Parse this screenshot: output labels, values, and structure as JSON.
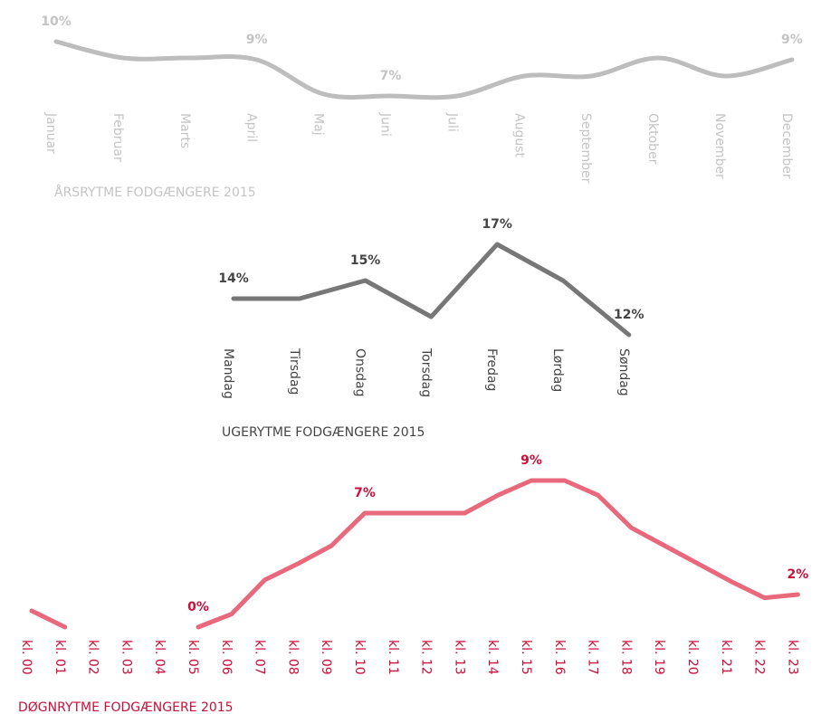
{
  "chart_data": [
    {
      "type": "line",
      "title": "ÅRSRYTME FODGÆNGERE 2015",
      "color": "#bdbdbd",
      "label_color": "#c4c4c4",
      "categories": [
        "Januar",
        "Februar",
        "Marts",
        "April",
        "Maj",
        "Juni",
        "Juli",
        "August",
        "September",
        "Oktober",
        "November",
        "December"
      ],
      "values": [
        10,
        9.1,
        9.1,
        9,
        7.1,
        7,
        7,
        8.1,
        8.1,
        9.1,
        8.1,
        9
      ],
      "value_labels": [
        "10%",
        null,
        null,
        "9%",
        null,
        "7%",
        null,
        null,
        null,
        null,
        null,
        "9%"
      ],
      "smooth": true
    },
    {
      "type": "line",
      "title": "UGERYTME FODGÆNGERE 2015",
      "color": "#777777",
      "label_color": "#444444",
      "categories": [
        "Mandag",
        "Tirsdag",
        "Onsdag",
        "Torsdag",
        "Fredag",
        "Lørdag",
        "Søndag"
      ],
      "values": [
        14,
        14,
        15,
        13,
        17,
        15,
        12
      ],
      "value_labels": [
        "14%",
        null,
        "15%",
        null,
        "17%",
        null,
        "12%"
      ],
      "smooth": false
    },
    {
      "type": "line",
      "title": "DØGNRYTME FODGÆNGERE 2015",
      "color": "#e8687c",
      "label_color": "#c8103a",
      "categories": [
        "kl. 00",
        "kl. 01",
        "kl. 02",
        "kl. 03",
        "kl. 04",
        "kl. 05",
        "kl. 06",
        "kl. 07",
        "kl. 08",
        "kl. 09",
        "kl. 10",
        "kl. 11",
        "kl. 12",
        "kl. 13",
        "kl. 14",
        "kl. 15",
        "kl. 16",
        "kl. 17",
        "kl. 18",
        "kl. 19",
        "kl. 20",
        "kl. 21",
        "kl. 22",
        "kl. 23"
      ],
      "values": [
        1,
        0,
        null,
        null,
        null,
        0,
        0.8,
        2.9,
        3.9,
        5,
        7,
        7,
        7,
        7,
        8.1,
        9,
        9,
        8.1,
        6.1,
        5,
        3.9,
        2.8,
        1.8,
        2
      ],
      "value_labels": [
        null,
        null,
        null,
        null,
        null,
        "0%",
        null,
        null,
        null,
        null,
        "7%",
        null,
        null,
        null,
        null,
        "9%",
        null,
        null,
        null,
        null,
        null,
        null,
        null,
        "2%"
      ],
      "smooth": false
    }
  ]
}
